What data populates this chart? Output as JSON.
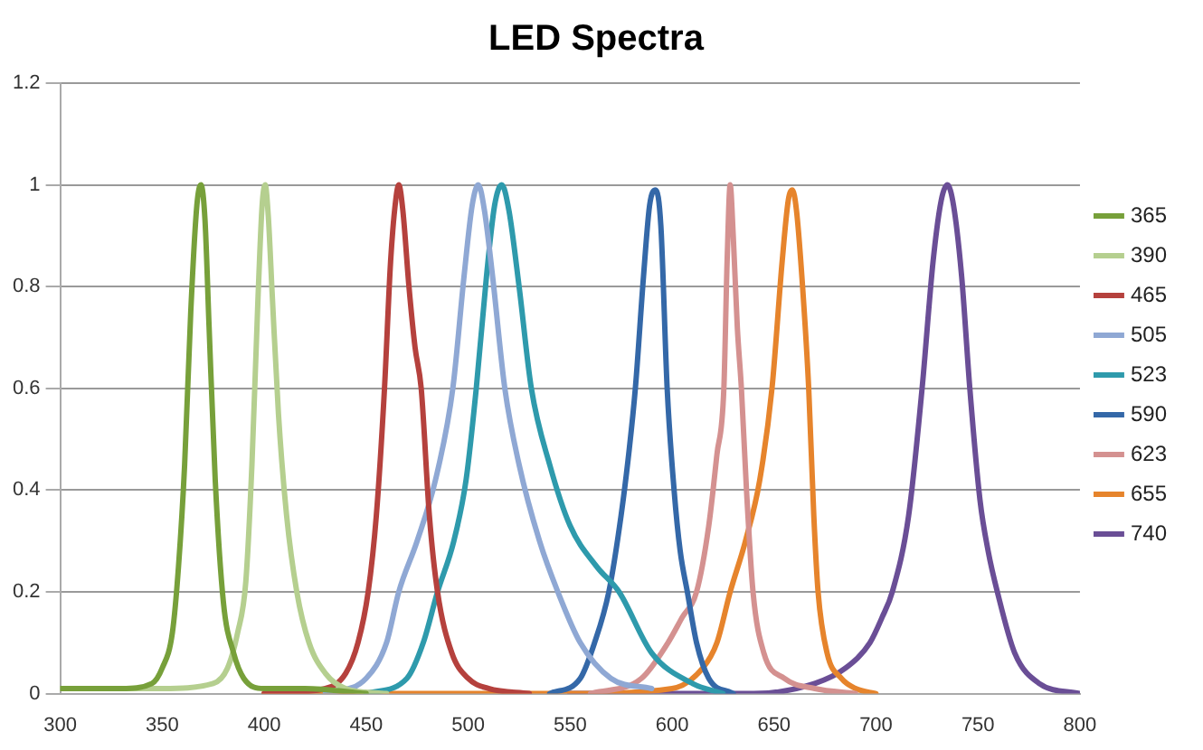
{
  "chart_data": {
    "type": "line",
    "title": "LED Spectra",
    "xlim": [
      300,
      800
    ],
    "xticks": [
      300,
      350,
      400,
      450,
      500,
      550,
      600,
      650,
      700,
      750,
      800
    ],
    "ylim": [
      0,
      1.2
    ],
    "yticks": [
      0,
      0.2,
      0.4,
      0.6,
      0.8,
      1,
      1.2
    ],
    "grid": "y",
    "legend": "right",
    "marker": "none",
    "line_style": "solid",
    "series": [
      {
        "name": "365",
        "color": "#77a03a",
        "x": [
          300,
          330,
          345,
          350,
          355,
          358,
          361,
          364,
          367,
          369,
          371,
          373,
          376,
          380,
          385,
          390,
          400,
          420,
          450
        ],
        "values": [
          0.01,
          0.01,
          0.02,
          0.05,
          0.12,
          0.25,
          0.45,
          0.75,
          0.96,
          1.0,
          0.93,
          0.72,
          0.42,
          0.18,
          0.08,
          0.03,
          0.01,
          0.01,
          0.0
        ]
      },
      {
        "name": "390",
        "color": "#b5cf8f",
        "x": [
          300,
          350,
          375,
          382,
          387,
          391,
          394,
          397,
          399,
          400.5,
          402,
          404,
          407,
          411,
          416,
          422,
          430,
          440,
          460
        ],
        "values": [
          0.01,
          0.01,
          0.02,
          0.05,
          0.12,
          0.22,
          0.45,
          0.78,
          0.96,
          1.0,
          0.94,
          0.78,
          0.55,
          0.35,
          0.2,
          0.1,
          0.04,
          0.01,
          0.0
        ]
      },
      {
        "name": "465",
        "color": "#b5413d",
        "x": [
          400,
          430,
          440,
          446,
          451,
          455,
          459,
          462,
          464.5,
          466,
          468,
          471,
          474,
          477,
          481,
          485,
          492,
          500,
          510,
          530
        ],
        "values": [
          0.0,
          0.01,
          0.04,
          0.1,
          0.2,
          0.35,
          0.6,
          0.85,
          0.97,
          1.0,
          0.95,
          0.8,
          0.68,
          0.6,
          0.35,
          0.2,
          0.08,
          0.03,
          0.01,
          0.0
        ]
      },
      {
        "name": "505",
        "color": "#8fa8d4",
        "x": [
          430,
          450,
          460,
          466,
          475,
          484,
          492.5,
          498,
          502,
          505,
          508,
          512,
          518,
          525,
          535,
          544,
          555,
          570,
          590
        ],
        "values": [
          0.0,
          0.03,
          0.1,
          0.2,
          0.3,
          0.42,
          0.6,
          0.82,
          0.96,
          1.0,
          0.95,
          0.82,
          0.6,
          0.45,
          0.3,
          0.2,
          0.1,
          0.03,
          0.01
        ]
      },
      {
        "name": "523",
        "color": "#2e9aac",
        "x": [
          450,
          470,
          478,
          485,
          493,
          499,
          504,
          509,
          513,
          516.5,
          520,
          525,
          531,
          540,
          550,
          563,
          574,
          590,
          610,
          625
        ],
        "values": [
          0.0,
          0.03,
          0.1,
          0.2,
          0.3,
          0.42,
          0.6,
          0.82,
          0.96,
          1.0,
          0.95,
          0.8,
          0.6,
          0.45,
          0.33,
          0.25,
          0.2,
          0.08,
          0.02,
          0.0
        ]
      },
      {
        "name": "590",
        "color": "#3468a8",
        "x": [
          540,
          555,
          562,
          569,
          575,
          579,
          582,
          586,
          589,
          592,
          594.5,
          597.6,
          601,
          604,
          607.5,
          612,
          618,
          630
        ],
        "values": [
          0.0,
          0.03,
          0.1,
          0.2,
          0.35,
          0.48,
          0.6,
          0.82,
          0.96,
          0.99,
          0.92,
          0.6,
          0.4,
          0.28,
          0.2,
          0.1,
          0.03,
          0.0
        ]
      },
      {
        "name": "623",
        "color": "#d49190",
        "x": [
          560,
          585,
          598,
          605,
          612,
          618,
          622,
          625.4,
          627,
          628.5,
          630,
          632,
          634,
          636.5,
          639.7,
          645,
          655,
          670,
          690
        ],
        "values": [
          0.0,
          0.03,
          0.1,
          0.15,
          0.2,
          0.33,
          0.47,
          0.6,
          0.85,
          1.0,
          0.9,
          0.72,
          0.6,
          0.4,
          0.2,
          0.08,
          0.03,
          0.01,
          0.0
        ]
      },
      {
        "name": "655",
        "color": "#e6842c",
        "x": [
          400,
          550,
          600,
          615,
          622,
          628.5,
          636,
          643,
          649,
          654,
          657,
          659,
          661,
          664,
          667,
          669.5,
          671.6,
          676,
          683,
          690,
          700
        ],
        "values": [
          0.0,
          0.0,
          0.01,
          0.05,
          0.1,
          0.2,
          0.3,
          0.42,
          0.6,
          0.85,
          0.97,
          0.99,
          0.95,
          0.8,
          0.6,
          0.35,
          0.2,
          0.08,
          0.03,
          0.01,
          0.0
        ]
      },
      {
        "name": "740",
        "color": "#6a4e96",
        "x": [
          550,
          640,
          670,
          685,
          697,
          703,
          708,
          716,
          722.6,
          728,
          732,
          735,
          738,
          742,
          746,
          751,
          755,
          759.5,
          768,
          780,
          800
        ],
        "values": [
          0.0,
          0.0,
          0.02,
          0.05,
          0.1,
          0.15,
          0.2,
          0.35,
          0.6,
          0.85,
          0.97,
          1.0,
          0.96,
          0.82,
          0.6,
          0.38,
          0.28,
          0.2,
          0.08,
          0.02,
          0.0
        ]
      }
    ]
  }
}
